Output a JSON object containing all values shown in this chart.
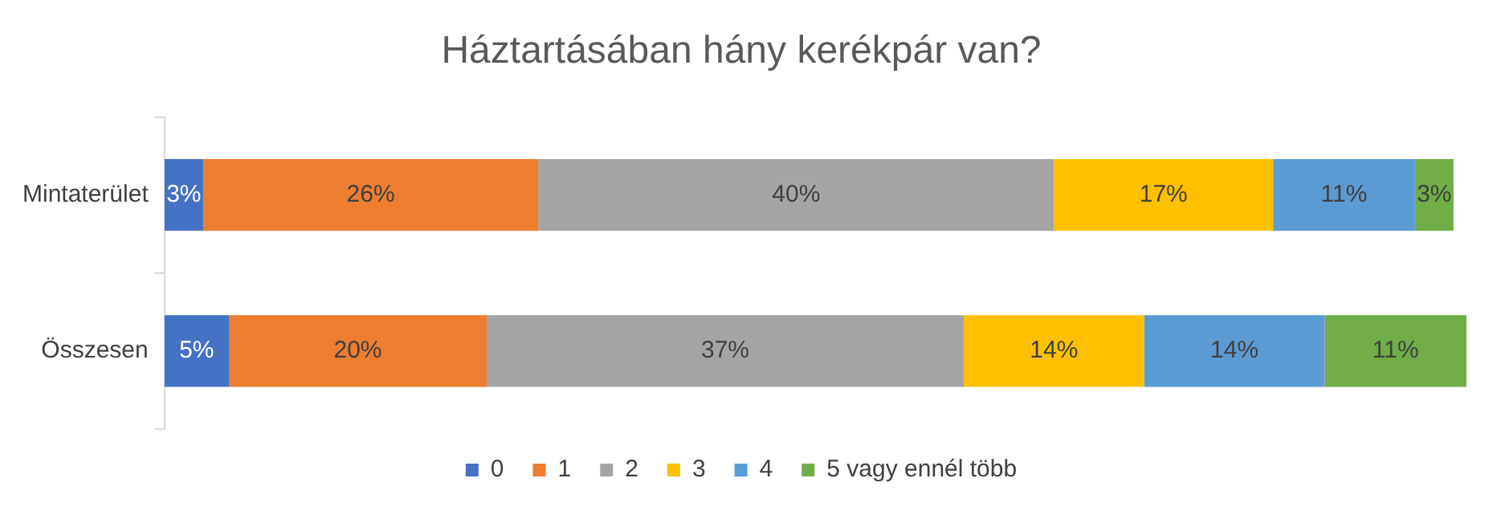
{
  "chart_data": {
    "type": "bar",
    "orientation": "horizontal",
    "stacked": true,
    "title": "Háztartásában hány kerékpár van?",
    "categories": [
      "Mintaterület",
      "Összesen"
    ],
    "series": [
      {
        "name": "0",
        "color": "#4472c4",
        "values": [
          3,
          5
        ],
        "value_labels": [
          "3%",
          "5%"
        ]
      },
      {
        "name": "1",
        "color": "#ed7d31",
        "values": [
          26,
          20
        ],
        "value_labels": [
          "26%",
          "20%"
        ]
      },
      {
        "name": "2",
        "color": "#a5a5a5",
        "values": [
          40,
          37
        ],
        "value_labels": [
          "40%",
          "37%"
        ]
      },
      {
        "name": "3",
        "color": "#ffc000",
        "values": [
          17,
          14
        ],
        "value_labels": [
          "17%",
          "14%"
        ]
      },
      {
        "name": "4",
        "color": "#5b9bd5",
        "values": [
          11,
          14
        ],
        "value_labels": [
          "11%",
          "14%"
        ]
      },
      {
        "name": "5 vagy ennél több",
        "color": "#70ad47",
        "values": [
          3,
          11
        ],
        "value_labels": [
          "3%",
          "11%"
        ]
      }
    ],
    "legend": "bottom",
    "grid": false
  }
}
